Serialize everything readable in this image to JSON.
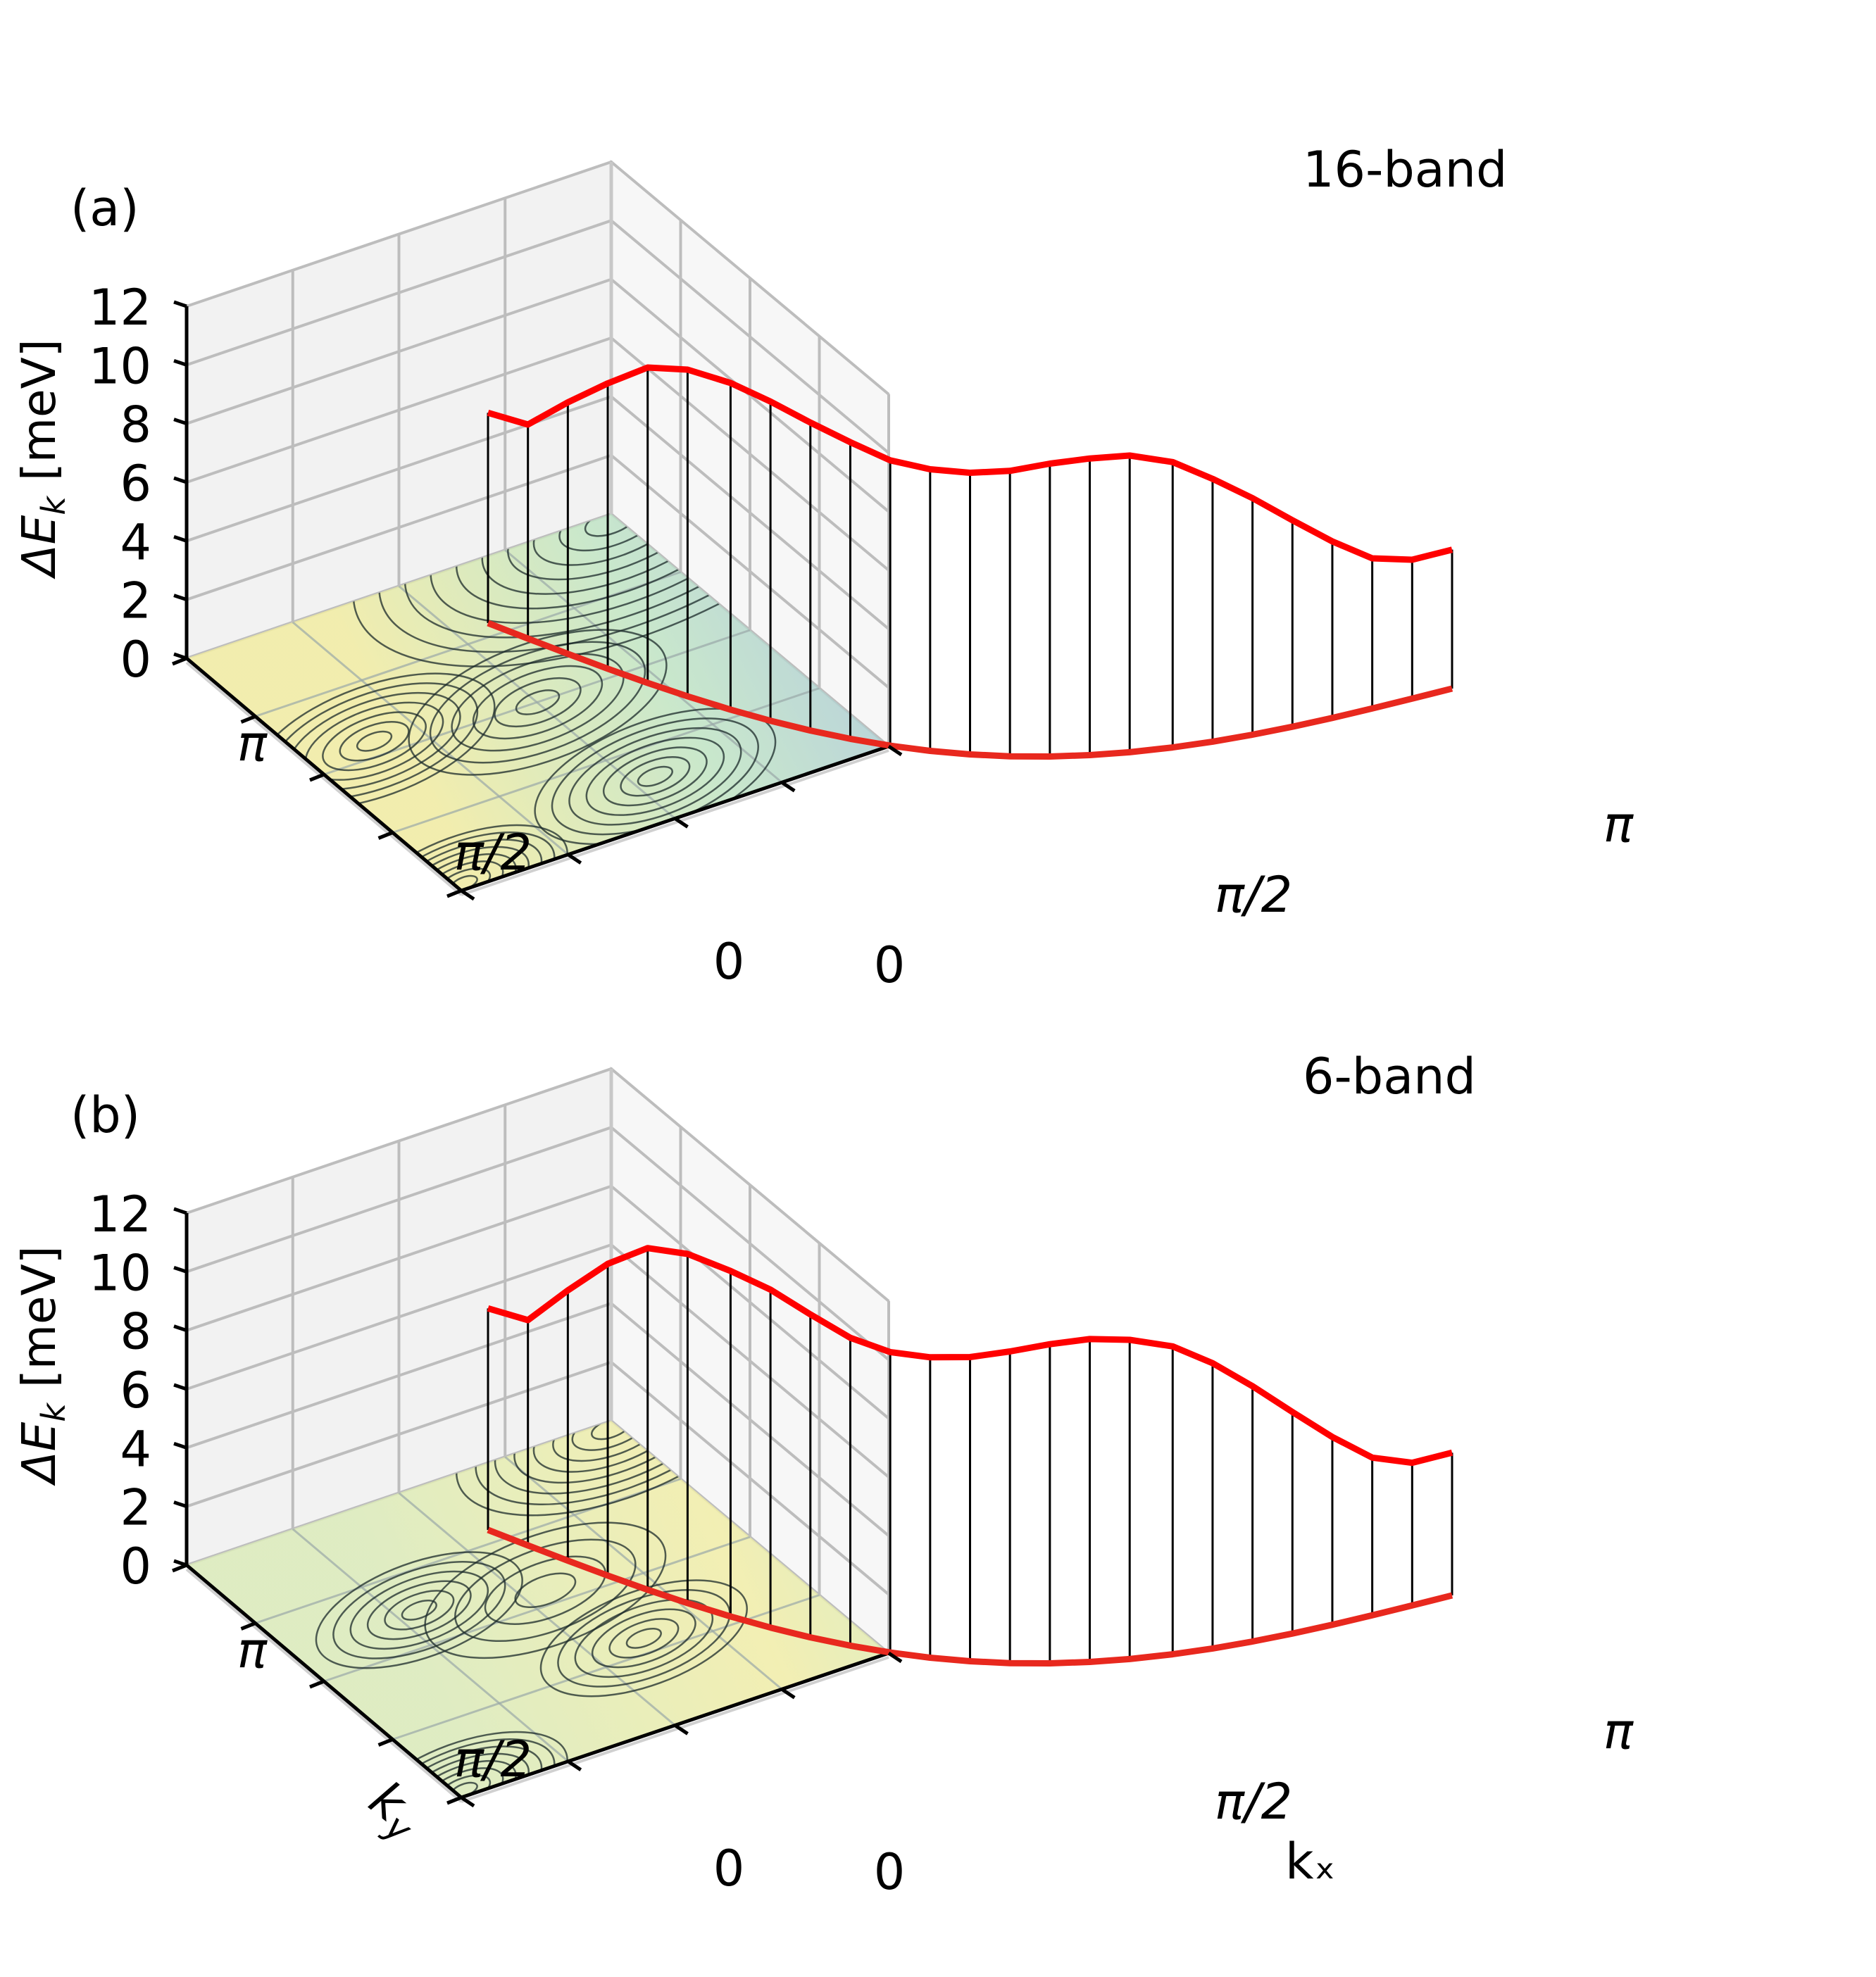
{
  "figure": {
    "panel_count": 2
  },
  "chart_data": [
    {
      "type": "surface3d",
      "panel_label": "(a)",
      "title": "16-band",
      "zlabel_main": "ΔE",
      "zlabel_sub": "k",
      "zlabel_unit": "[meV]",
      "xlabel": "",
      "ylabel": "",
      "xlim": [
        0,
        3.1416
      ],
      "ylim": [
        0,
        3.1416
      ],
      "zlim": [
        0,
        12
      ],
      "z_ticks": [
        "0",
        "2",
        "4",
        "6",
        "8",
        "10",
        "12"
      ],
      "x_ticks": [
        "0",
        "π/2",
        "π"
      ],
      "y_ticks": [
        "0",
        "π/2",
        "π"
      ],
      "floor_colormap": "viridis-like, yellow = high ΔE, dark purple = low ΔE",
      "diagonal_x": [
        0,
        0.13,
        0.26,
        0.39,
        0.52,
        0.65,
        0.79,
        0.92,
        1.05,
        1.18,
        1.31,
        1.44,
        1.57,
        1.7,
        1.83,
        1.96,
        2.09,
        2.23,
        2.36,
        2.49,
        2.62,
        2.75,
        2.88,
        3.01,
        3.14
      ],
      "diagonal_dE": [
        5.6,
        5.7,
        6.7,
        7.6,
        8.4,
        8.7,
        8.7,
        8.5,
        8.2,
        7.9,
        7.6,
        7.5,
        7.5,
        7.6,
        7.8,
        7.9,
        7.9,
        7.6,
        7.0,
        6.3,
        5.5,
        4.7,
        4.0,
        3.7,
        3.7
      ]
    },
    {
      "type": "surface3d",
      "panel_label": "(b)",
      "title": "6-band",
      "zlabel_main": "ΔE",
      "zlabel_sub": "k",
      "zlabel_unit": "[meV]",
      "xlabel": "kₓ",
      "ylabel": "k",
      "ylabel_sub": "y",
      "xlim": [
        0,
        3.1416
      ],
      "ylim": [
        0,
        3.1416
      ],
      "zlim": [
        0,
        12
      ],
      "z_ticks": [
        "0",
        "2",
        "4",
        "6",
        "8",
        "10",
        "12"
      ],
      "x_ticks": [
        "0",
        "π/2",
        "π"
      ],
      "y_ticks": [
        "0",
        "π/2",
        "π"
      ],
      "floor_colormap": "viridis-like, yellow = high ΔE, dark purple = low ΔE",
      "diagonal_x": [
        0,
        0.13,
        0.26,
        0.39,
        0.52,
        0.65,
        0.79,
        0.92,
        1.05,
        1.18,
        1.31,
        1.44,
        1.57,
        1.7,
        1.83,
        1.96,
        2.09,
        2.23,
        2.36,
        2.49,
        2.62,
        2.75,
        2.88,
        3.01,
        3.14
      ],
      "diagonal_dE": [
        5.9,
        6.0,
        7.2,
        8.3,
        9.1,
        9.3,
        9.2,
        9.0,
        8.6,
        8.2,
        8.0,
        8.0,
        8.1,
        8.3,
        8.5,
        8.6,
        8.5,
        8.2,
        7.6,
        6.8,
        5.9,
        5.0,
        4.2,
        3.8,
        3.8
      ]
    }
  ]
}
